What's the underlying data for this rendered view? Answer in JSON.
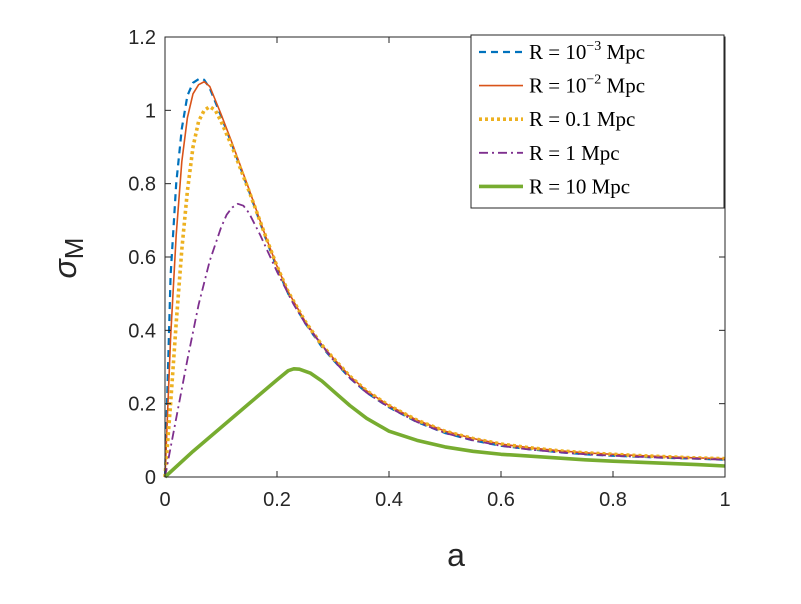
{
  "chart_data": {
    "type": "line",
    "title": "",
    "xlabel": "a",
    "ylabel": "σ",
    "ylabel_sub": "M",
    "xlim": [
      0,
      1
    ],
    "ylim": [
      0,
      1.2
    ],
    "xticks": [
      0,
      0.2,
      0.4,
      0.6,
      0.8,
      1
    ],
    "xtick_labels": [
      "0",
      "0.2",
      "0.4",
      "0.6",
      "0.8",
      "1"
    ],
    "yticks": [
      0,
      0.2,
      0.4,
      0.6,
      0.8,
      1,
      1.2
    ],
    "ytick_labels": [
      "0",
      "0.2",
      "0.4",
      "0.6",
      "0.8",
      "1",
      "1.2"
    ],
    "grid": false,
    "legend_position": "top-right",
    "series": [
      {
        "name": "R = 10⁻³ Mpc",
        "legend": {
          "prefix": "R = 10",
          "sup": "−3",
          "suffix": " Mpc"
        },
        "color": "#0072BD",
        "style": "dashed",
        "x": [
          0,
          0.01,
          0.02,
          0.03,
          0.04,
          0.05,
          0.06,
          0.065,
          0.07,
          0.08,
          0.1,
          0.12,
          0.15,
          0.18,
          0.2,
          0.22,
          0.25,
          0.28,
          0.3,
          0.33,
          0.36,
          0.4,
          0.45,
          0.5,
          0.55,
          0.6,
          0.65,
          0.7,
          0.75,
          0.8,
          0.85,
          0.9,
          0.95,
          1.0
        ],
        "y": [
          0,
          0.55,
          0.8,
          0.95,
          1.04,
          1.075,
          1.085,
          1.087,
          1.083,
          1.06,
          0.985,
          0.905,
          0.78,
          0.65,
          0.57,
          0.5,
          0.42,
          0.355,
          0.32,
          0.27,
          0.23,
          0.19,
          0.15,
          0.12,
          0.1,
          0.085,
          0.076,
          0.068,
          0.062,
          0.058,
          0.055,
          0.052,
          0.05,
          0.047
        ]
      },
      {
        "name": "R = 10⁻² Mpc",
        "legend": {
          "prefix": "R = 10",
          "sup": "−2",
          "suffix": " Mpc"
        },
        "color": "#D95319",
        "style": "solid",
        "x": [
          0,
          0.01,
          0.02,
          0.03,
          0.04,
          0.05,
          0.06,
          0.07,
          0.08,
          0.1,
          0.12,
          0.15,
          0.18,
          0.2,
          0.22,
          0.25,
          0.28,
          0.3,
          0.33,
          0.36,
          0.4,
          0.45,
          0.5,
          0.55,
          0.6,
          0.65,
          0.7,
          0.75,
          0.8,
          0.85,
          0.9,
          0.95,
          1.0
        ],
        "y": [
          0,
          0.38,
          0.66,
          0.86,
          0.98,
          1.045,
          1.07,
          1.078,
          1.065,
          0.99,
          0.91,
          0.785,
          0.655,
          0.575,
          0.505,
          0.425,
          0.36,
          0.325,
          0.275,
          0.235,
          0.195,
          0.155,
          0.125,
          0.105,
          0.09,
          0.08,
          0.072,
          0.066,
          0.062,
          0.058,
          0.055,
          0.052,
          0.05
        ]
      },
      {
        "name": "R = 0.1 Mpc",
        "legend": {
          "prefix": "R = 0.1 Mpc",
          "sup": "",
          "suffix": ""
        },
        "color": "#EDB120",
        "style": "dotted",
        "x": [
          0,
          0.01,
          0.02,
          0.03,
          0.04,
          0.05,
          0.06,
          0.07,
          0.08,
          0.09,
          0.1,
          0.12,
          0.15,
          0.18,
          0.2,
          0.22,
          0.25,
          0.28,
          0.3,
          0.33,
          0.36,
          0.4,
          0.45,
          0.5,
          0.55,
          0.6,
          0.65,
          0.7,
          0.75,
          0.8,
          0.85,
          0.9,
          0.95,
          1.0
        ],
        "y": [
          0,
          0.2,
          0.42,
          0.62,
          0.78,
          0.9,
          0.97,
          1.0,
          1.01,
          1.0,
          0.97,
          0.9,
          0.78,
          0.655,
          0.575,
          0.505,
          0.425,
          0.36,
          0.325,
          0.275,
          0.235,
          0.195,
          0.155,
          0.125,
          0.105,
          0.09,
          0.08,
          0.072,
          0.066,
          0.062,
          0.058,
          0.055,
          0.052,
          0.05
        ]
      },
      {
        "name": "R = 1 Mpc",
        "legend": {
          "prefix": "R = 1 Mpc",
          "sup": "",
          "suffix": ""
        },
        "color": "#7E2F8E",
        "style": "dashdot",
        "x": [
          0,
          0.02,
          0.04,
          0.06,
          0.08,
          0.1,
          0.11,
          0.12,
          0.13,
          0.14,
          0.15,
          0.17,
          0.2,
          0.23,
          0.25,
          0.28,
          0.3,
          0.33,
          0.36,
          0.4,
          0.45,
          0.5,
          0.55,
          0.6,
          0.65,
          0.7,
          0.75,
          0.8,
          0.85,
          0.9,
          0.95,
          1.0
        ],
        "y": [
          0,
          0.16,
          0.32,
          0.47,
          0.59,
          0.68,
          0.715,
          0.735,
          0.745,
          0.74,
          0.72,
          0.66,
          0.56,
          0.47,
          0.42,
          0.36,
          0.32,
          0.27,
          0.23,
          0.19,
          0.15,
          0.12,
          0.1,
          0.085,
          0.075,
          0.068,
          0.062,
          0.058,
          0.055,
          0.052,
          0.05,
          0.047
        ]
      },
      {
        "name": "R = 10 Mpc",
        "legend": {
          "prefix": "R = 10 Mpc",
          "sup": "",
          "suffix": ""
        },
        "color": "#77AC30",
        "style": "solid-thick",
        "x": [
          0,
          0.05,
          0.1,
          0.15,
          0.2,
          0.22,
          0.23,
          0.24,
          0.26,
          0.28,
          0.3,
          0.33,
          0.36,
          0.4,
          0.45,
          0.5,
          0.55,
          0.6,
          0.65,
          0.7,
          0.75,
          0.8,
          0.85,
          0.9,
          0.95,
          1.0
        ],
        "y": [
          0,
          0.07,
          0.135,
          0.2,
          0.265,
          0.29,
          0.295,
          0.294,
          0.283,
          0.262,
          0.235,
          0.195,
          0.16,
          0.125,
          0.1,
          0.082,
          0.07,
          0.062,
          0.057,
          0.052,
          0.047,
          0.043,
          0.04,
          0.037,
          0.034,
          0.03
        ]
      }
    ]
  }
}
